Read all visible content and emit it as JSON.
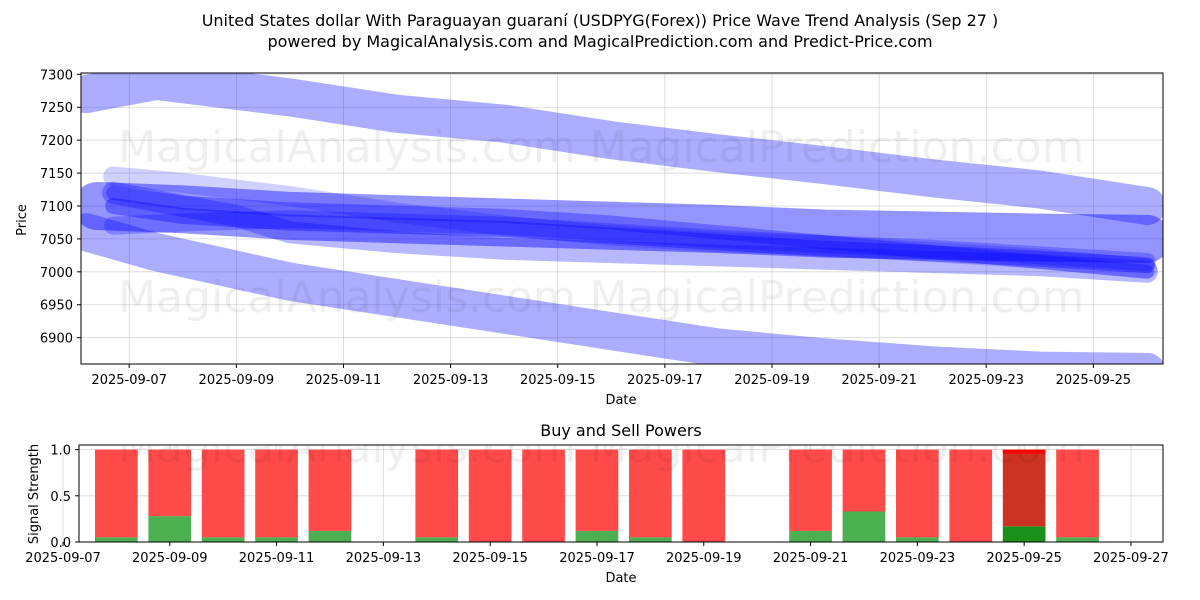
{
  "chart_data": [
    {
      "type": "line",
      "title_line1": "United States dollar With Paraguayan guaraní (USDPYG(Forex)) Price Wave Trend Analysis (Sep 27 )",
      "title_line2": "powered by MagicalAnalysis.com and MagicalPrediction.com and Predict-Price.com",
      "xlabel": "Date",
      "ylabel": "Price",
      "xlim": [
        -0.9,
        19.3
      ],
      "ylim": [
        6860,
        7302
      ],
      "x_tick_labels": [
        "2025-09-07",
        "2025-09-09",
        "2025-09-11",
        "2025-09-13",
        "2025-09-15",
        "2025-09-17",
        "2025-09-19",
        "2025-09-21",
        "2025-09-23",
        "2025-09-25"
      ],
      "x_tick_values": [
        0,
        2,
        4,
        6,
        8,
        10,
        12,
        14,
        16,
        18
      ],
      "y_ticks": [
        6900,
        6950,
        7000,
        7050,
        7100,
        7150,
        7200,
        7250,
        7300
      ],
      "color": "#0000ff",
      "bands": [
        {
          "name": "upper-envelope",
          "x": [
            -0.8,
            0.5,
            3,
            5,
            7,
            9,
            11,
            13,
            15,
            17,
            19
          ],
          "y": [
            7270,
            7290,
            7265,
            7240,
            7225,
            7200,
            7180,
            7162,
            7142,
            7125,
            7100
          ],
          "width": 38,
          "opacity": 0.32
        },
        {
          "name": "lower-envelope",
          "x": [
            -0.8,
            0.5,
            3,
            5,
            7,
            9,
            11,
            13,
            15,
            17,
            19
          ],
          "y": [
            7060,
            7030,
            6985,
            6960,
            6935,
            6910,
            6885,
            6870,
            6858,
            6850,
            6848
          ],
          "width": 38,
          "opacity": 0.32
        },
        {
          "name": "main-band",
          "x": [
            -0.6,
            1,
            3,
            5,
            7,
            9,
            11,
            13,
            15,
            17,
            19
          ],
          "y": [
            7100,
            7095,
            7085,
            7080,
            7075,
            7070,
            7065,
            7058,
            7055,
            7052,
            7050
          ],
          "width": 48,
          "opacity": 0.42
        },
        {
          "name": "wave-a",
          "x": [
            -0.3,
            1,
            2,
            3,
            5,
            7,
            9,
            11,
            13,
            15,
            17,
            19
          ],
          "y": [
            7120,
            7100,
            7085,
            7060,
            7045,
            7035,
            7030,
            7025,
            7020,
            7015,
            7010,
            7000
          ],
          "width": 22,
          "opacity": 0.28
        },
        {
          "name": "wave-b",
          "x": [
            -0.3,
            1,
            3,
            5,
            7,
            9,
            11,
            13,
            15,
            17,
            19
          ],
          "y": [
            7145,
            7135,
            7115,
            7090,
            7070,
            7055,
            7045,
            7040,
            7030,
            7020,
            7005
          ],
          "width": 20,
          "opacity": 0.18
        },
        {
          "name": "wave-c",
          "x": [
            -0.3,
            1,
            3,
            5,
            7,
            9,
            11,
            13,
            15,
            17,
            19
          ],
          "y": [
            7100,
            7085,
            7075,
            7070,
            7065,
            7055,
            7045,
            7035,
            7028,
            7020,
            7010
          ],
          "width": 16,
          "opacity": 0.35
        },
        {
          "name": "wave-d",
          "x": [
            -0.3,
            1,
            3,
            5,
            7,
            9,
            11,
            13,
            15,
            17,
            19
          ],
          "y": [
            7070,
            7075,
            7080,
            7075,
            7070,
            7060,
            7050,
            7042,
            7035,
            7025,
            7015
          ],
          "width": 18,
          "opacity": 0.25
        },
        {
          "name": "wave-e",
          "x": [
            -0.3,
            1,
            3,
            5,
            7,
            9,
            11,
            13,
            15,
            17,
            19
          ],
          "y": [
            7120,
            7105,
            7095,
            7090,
            7085,
            7075,
            7060,
            7045,
            7030,
            7015,
            7000
          ],
          "width": 14,
          "opacity": 0.3
        }
      ],
      "watermarks": [
        "MagicalAnalysis.com",
        "MagicalPrediction.com",
        "MagicalAnalysis.com",
        "MagicalPrediction.com"
      ]
    },
    {
      "type": "bar",
      "title": "Buy and Sell Powers",
      "xlabel": "Date",
      "ylabel": "Signal Strength",
      "xlim": [
        0.3,
        20.6
      ],
      "ylim": [
        0,
        1.05
      ],
      "y_ticks": [
        0.0,
        0.5,
        1.0
      ],
      "y_tick_labels": [
        "0.0",
        "0.5",
        "1.0"
      ],
      "x_tick_labels": [
        "2025-09-07",
        "2025-09-09",
        "2025-09-11",
        "2025-09-13",
        "2025-09-15",
        "2025-09-17",
        "2025-09-19",
        "2025-09-21",
        "2025-09-23",
        "2025-09-25",
        "2025-09-27"
      ],
      "x_tick_values": [
        0,
        2,
        4,
        6,
        8,
        10,
        12,
        14,
        16,
        18,
        20
      ],
      "categories": [
        "2025-09-08",
        "2025-09-09",
        "2025-09-10",
        "2025-09-11",
        "2025-09-12",
        "2025-09-14",
        "2025-09-15",
        "2025-09-16",
        "2025-09-17",
        "2025-09-18",
        "2025-09-19",
        "2025-09-21",
        "2025-09-22",
        "2025-09-23",
        "2025-09-24",
        "2025-09-25",
        "2025-09-26"
      ],
      "x": [
        1,
        2,
        3,
        4,
        5,
        7,
        8,
        9,
        10,
        11,
        12,
        14,
        15,
        16,
        17,
        18,
        19
      ],
      "series": [
        {
          "name": "Buy",
          "color": "#4caf50",
          "values": [
            0.05,
            0.28,
            0.05,
            0.05,
            0.12,
            0.05,
            0.0,
            0.0,
            0.12,
            0.05,
            0.0,
            0.12,
            0.33,
            0.05,
            0.0,
            0.17,
            0.05
          ]
        },
        {
          "name": "Sell",
          "color": "#ff4a4a",
          "values": [
            0.95,
            0.72,
            0.95,
            0.95,
            0.88,
            0.95,
            1.0,
            1.0,
            0.88,
            0.95,
            1.0,
            0.88,
            0.67,
            0.95,
            1.0,
            0.83,
            0.95
          ]
        }
      ],
      "highlight_index": 15,
      "highlight_buy_color": "#1a8f1a",
      "highlight_sell_color": "#cc3322",
      "watermarks": [
        "MagicalAnalysis.com",
        "MagicalPrediction.com"
      ]
    }
  ]
}
